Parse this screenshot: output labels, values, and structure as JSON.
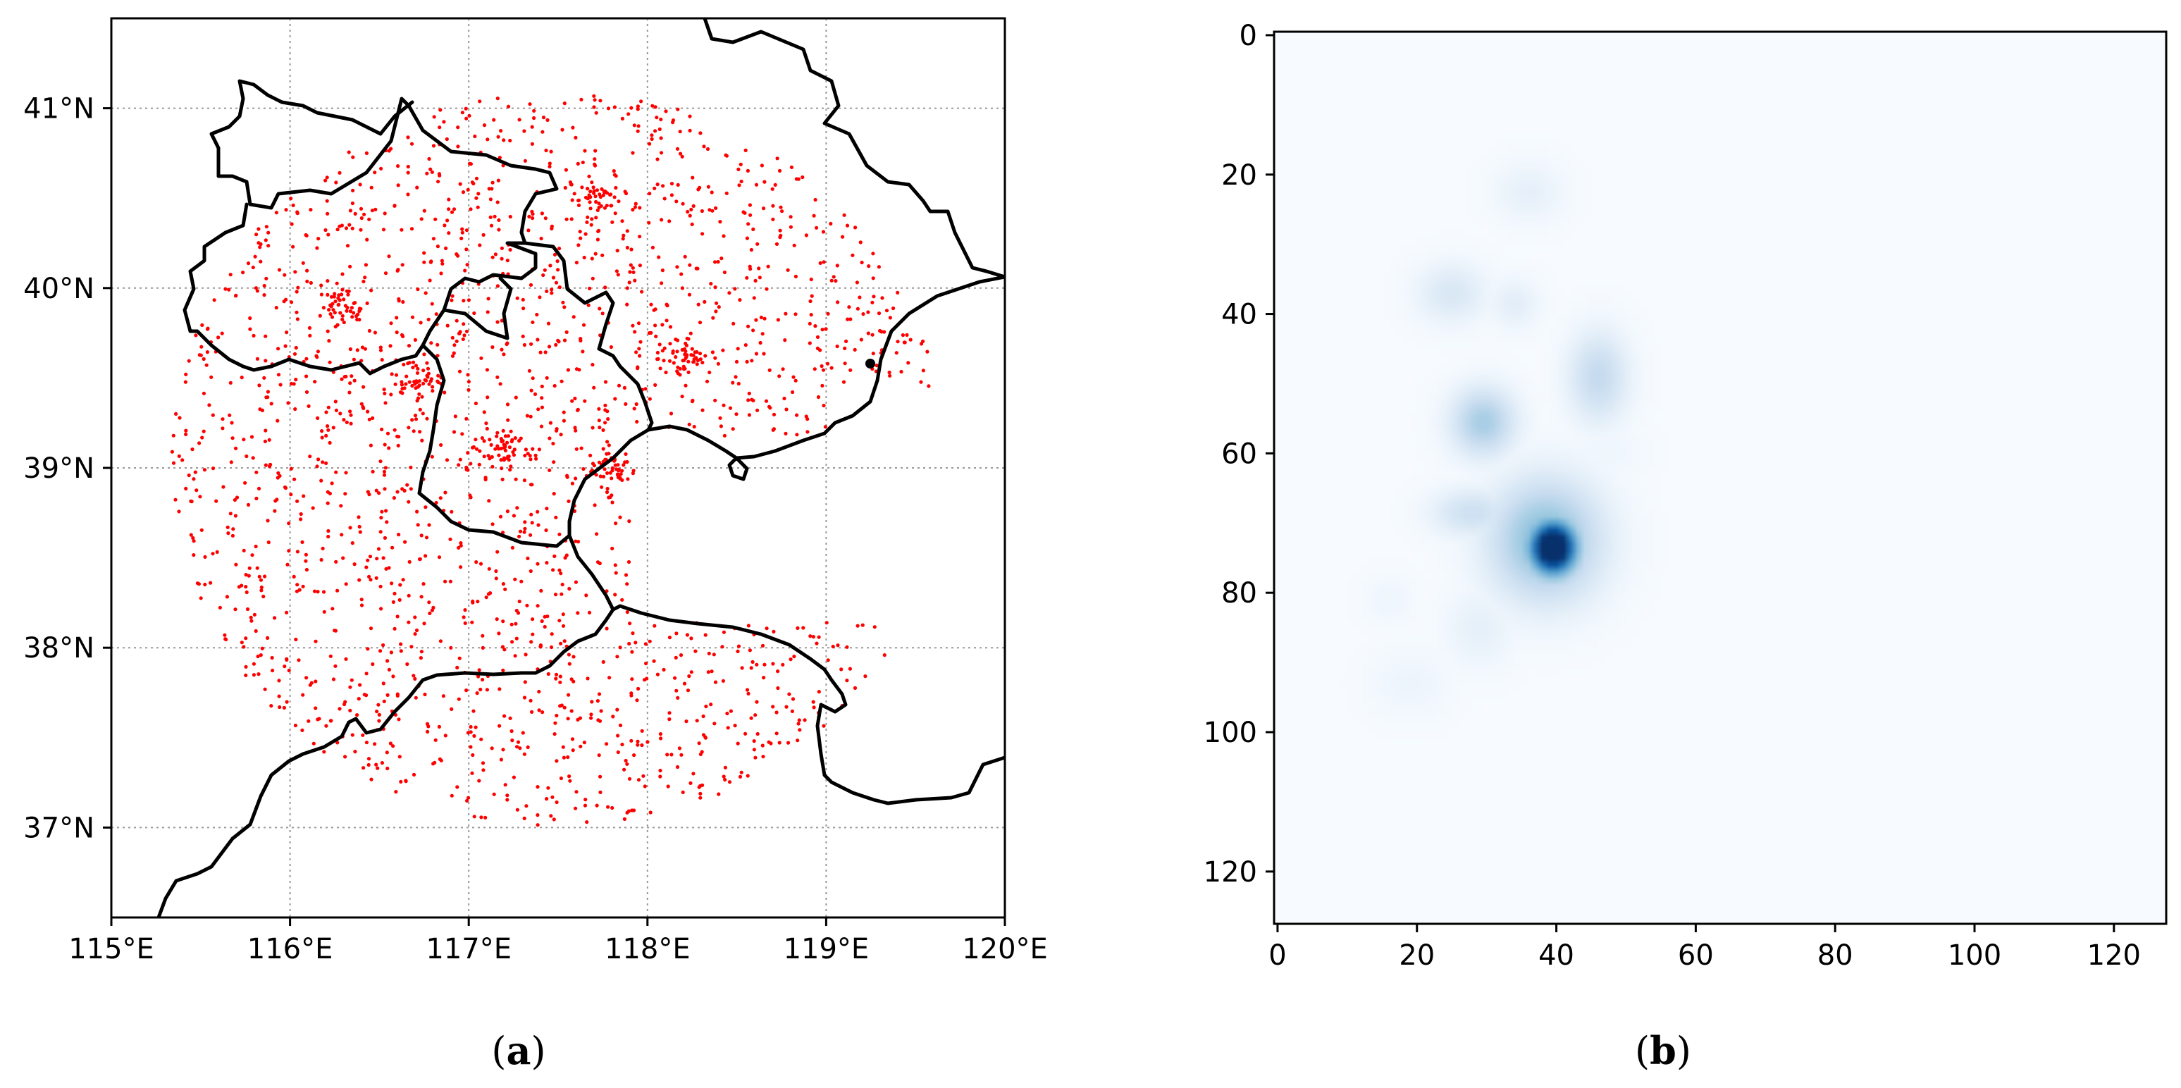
{
  "figure": {
    "panel_a_label": {
      "open": "(",
      "letter": "a",
      "close": ")"
    },
    "panel_b_label": {
      "open": "(",
      "letter": "b",
      "close": ")"
    }
  },
  "colors": {
    "station_dot": "#ff0000",
    "boundary": "#000000",
    "grid": "#999999",
    "heat_low": "#f7fbff",
    "heat_high": "#08306b"
  },
  "chart_data": [
    {
      "type": "scatter",
      "panel": "a",
      "title": "",
      "x_tick_labels": [
        "115°E",
        "116°E",
        "117°E",
        "118°E",
        "119°E",
        "120°E"
      ],
      "x_ticks": [
        115,
        116,
        117,
        118,
        119,
        120
      ],
      "y_tick_labels": [
        "37°N",
        "38°N",
        "39°N",
        "40°N",
        "41°N"
      ],
      "y_ticks": [
        37,
        38,
        39,
        40,
        41
      ],
      "xlim": [
        115,
        120
      ],
      "ylim": [
        36.5,
        41.5
      ],
      "grid": true,
      "series": [
        {
          "marker": "dot",
          "color": "#ff0000",
          "region_center": [
            117.5,
            39.05
          ],
          "region_radius_deg": 2.05,
          "approx_count": 1900,
          "dense_clusters": [
            [
              116.3,
              39.9
            ],
            [
              117.2,
              39.1
            ],
            [
              116.7,
              39.5
            ],
            [
              118.2,
              39.6
            ],
            [
              117.7,
              40.5
            ],
            [
              117.8,
              39.0
            ]
          ]
        }
      ]
    },
    {
      "type": "heatmap",
      "panel": "b",
      "title": "",
      "x_tick_labels": [
        "0",
        "20",
        "40",
        "60",
        "80",
        "100",
        "120"
      ],
      "x_ticks": [
        0,
        20,
        40,
        60,
        80,
        100,
        120
      ],
      "y_tick_labels": [
        "0",
        "20",
        "40",
        "60",
        "80",
        "100",
        "120"
      ],
      "y_ticks": [
        0,
        20,
        40,
        60,
        80,
        100,
        120
      ],
      "xlim": [
        -0.5,
        127.5
      ],
      "ylim": [
        127.5,
        -0.5
      ],
      "colormap": "Blues",
      "hotspots": [
        {
          "x": 39.5,
          "y": 73.5,
          "intensity": 1.0,
          "sx": 2.8,
          "sy": 3.2
        },
        {
          "x": 38.5,
          "y": 72.5,
          "intensity": 0.55,
          "sx": 5.5,
          "sy": 6.0
        },
        {
          "x": 29.5,
          "y": 55.5,
          "intensity": 0.42,
          "sx": 3.2,
          "sy": 3.4
        },
        {
          "x": 46.0,
          "y": 49.0,
          "intensity": 0.3,
          "sx": 3.0,
          "sy": 4.5
        },
        {
          "x": 28.0,
          "y": 68.5,
          "intensity": 0.25,
          "sx": 4.0,
          "sy": 2.4
        },
        {
          "x": 25.0,
          "y": 37.0,
          "intensity": 0.18,
          "sx": 3.5,
          "sy": 3.0
        },
        {
          "x": 34.0,
          "y": 38.5,
          "intensity": 0.12,
          "sx": 2.5,
          "sy": 2.5
        },
        {
          "x": 36.0,
          "y": 22.5,
          "intensity": 0.1,
          "sx": 3.5,
          "sy": 3.0
        },
        {
          "x": 29.0,
          "y": 85.0,
          "intensity": 0.1,
          "sx": 3.5,
          "sy": 4.0
        },
        {
          "x": 19.0,
          "y": 93.0,
          "intensity": 0.06,
          "sx": 4.0,
          "sy": 3.5
        },
        {
          "x": 16.0,
          "y": 81.0,
          "intensity": 0.05,
          "sx": 2.5,
          "sy": 2.5
        },
        {
          "x": 47.0,
          "y": 60.0,
          "intensity": 0.05,
          "sx": 4.0,
          "sy": 3.0
        }
      ]
    }
  ]
}
